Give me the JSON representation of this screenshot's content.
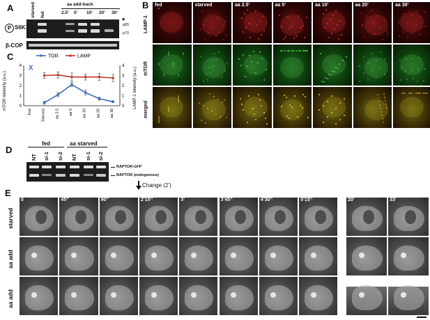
{
  "panels": {
    "A": {
      "label": "A",
      "header": "aa add-back",
      "lanes": [
        "starved",
        "fed",
        "2.5’",
        "5’",
        "10’",
        "20’",
        "30’"
      ],
      "antibody": "S6K1",
      "phospho": "P",
      "bands": [
        "p85",
        "p70"
      ],
      "asterisk": "*",
      "loading": "β-COP"
    },
    "B": {
      "label": "B",
      "columns": [
        "fed",
        "starved",
        "aa 2.5’",
        "aa 5’",
        "aa 10’",
        "aa 20’",
        "aa 30’"
      ],
      "rows": [
        "LAMP-1",
        "mTOR",
        "merged"
      ]
    },
    "C": {
      "label": "C",
      "x_marker": "X"
    },
    "D": {
      "label": "D",
      "group1": "fed",
      "group2": "aa starved",
      "lanes": [
        "NT",
        "si-1",
        "si-2",
        "NT",
        "si-1",
        "si-2"
      ],
      "band1": "RAPTOR-GFP",
      "band2": "RAPTOR (endogenous)"
    },
    "E": {
      "label": "E",
      "change": "Change (2’)",
      "times": [
        "0",
        "45’’",
        "90’’",
        "2’15’’",
        "3’",
        "3’45’’",
        "4’30’’",
        "5’15’’"
      ],
      "times_late": [
        "20’",
        "33’"
      ],
      "rows": [
        "starved",
        "aa add",
        "aa add"
      ]
    }
  },
  "chart_data": {
    "type": "line",
    "categories": [
      "Fed",
      "Starved",
      "aa 2.5",
      "aa 5",
      "aa 10",
      "aa 20",
      "aa 30"
    ],
    "ylabel_left": "mTOR intensity (a.u.)",
    "ylabel_right": "LAMP-1 intensity (a.u.)",
    "ylim": [
      0,
      4
    ],
    "yticks": [
      0,
      1,
      2,
      3,
      4
    ],
    "series": [
      {
        "name": "TOR",
        "color": "#3a6fb5",
        "values": [
          null,
          0.3,
          1.1,
          2.1,
          1.3,
          0.7,
          0.4
        ],
        "errors": [
          null,
          0.15,
          0.2,
          0.2,
          0.25,
          0.15,
          0.1
        ]
      },
      {
        "name": "LAMP",
        "color": "#c0392b",
        "values": [
          null,
          3.0,
          3.05,
          2.85,
          2.85,
          2.85,
          2.75
        ],
        "errors": [
          null,
          0.3,
          0.3,
          0.4,
          0.3,
          0.35,
          0.35
        ]
      }
    ]
  }
}
